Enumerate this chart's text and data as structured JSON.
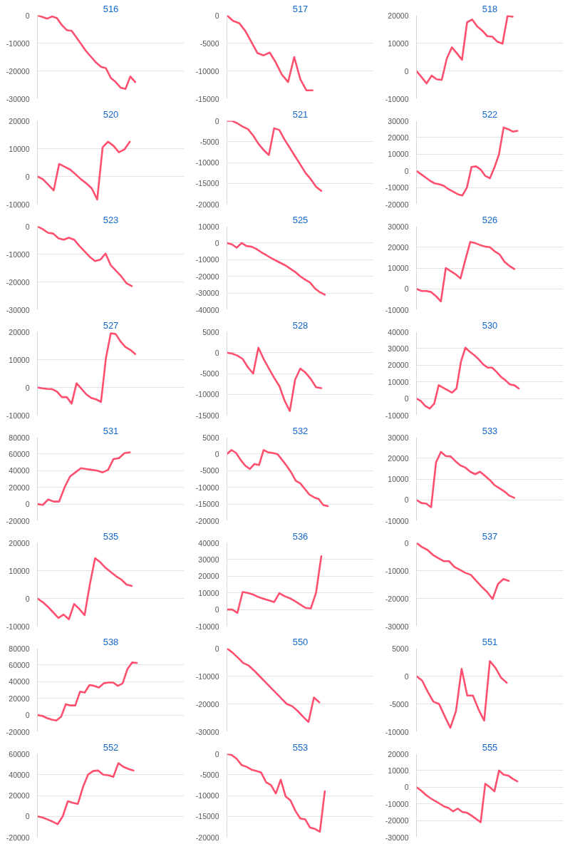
{
  "chart_data": [
    {
      "type": "line",
      "title": "516",
      "categories": [
        null,
        null,
        null,
        null,
        null,
        null,
        null,
        null,
        null,
        null,
        null,
        null,
        null,
        null,
        null,
        null,
        null,
        null,
        null,
        null,
        null,
        null,
        null,
        null,
        null,
        null,
        null,
        null,
        null,
        null,
        null
      ],
      "series": [
        {
          "color": "#ff4f6e",
          "values": [
            0,
            -600,
            -1200,
            -400,
            -1000,
            -3500,
            -5300,
            -5600,
            -8000,
            -10500,
            -13000,
            -15000,
            -17000,
            -18500,
            -19000,
            -22500,
            -24000,
            -26000,
            -26500,
            -22000,
            -24000,
            null,
            null,
            null,
            null,
            null,
            null,
            null,
            null,
            null,
            null
          ]
        }
      ],
      "ylim": [
        -30000,
        0
      ],
      "yticks": [
        -30000,
        -20000,
        -10000,
        0
      ],
      "grid": "y",
      "tick_labels": "y"
    },
    {
      "type": "line",
      "title": "517",
      "categories": [
        null,
        null,
        null,
        null,
        null,
        null,
        null,
        null,
        null,
        null,
        null,
        null,
        null,
        null,
        null,
        null,
        null,
        null,
        null,
        null,
        null,
        null,
        null,
        null,
        null
      ],
      "series": [
        {
          "color": "#ff4f6e",
          "values": [
            0,
            -1000,
            -1400,
            -2800,
            -4800,
            -6800,
            -7200,
            -6700,
            -8500,
            -10700,
            -12000,
            -7500,
            -11500,
            -13500,
            -13500,
            null,
            null,
            null,
            null,
            null,
            null,
            null,
            null,
            null,
            null
          ]
        }
      ],
      "ylim": [
        -15000,
        0
      ],
      "yticks": [
        -15000,
        -10000,
        -5000,
        0
      ],
      "grid": "y",
      "tick_labels": "y"
    },
    {
      "type": "line",
      "title": "518",
      "categories": [
        null,
        null,
        null,
        null,
        null,
        null,
        null,
        null,
        null,
        null,
        null,
        null,
        null,
        null,
        null,
        null,
        null,
        null,
        null,
        null,
        null,
        null,
        null,
        null,
        null,
        null,
        null,
        null,
        null,
        null
      ],
      "series": [
        {
          "color": "#ff4f6e",
          "values": [
            0,
            -2200,
            -4500,
            -1700,
            -3000,
            -3200,
            4500,
            8500,
            6300,
            4000,
            17500,
            18500,
            16000,
            14500,
            12500,
            12300,
            10500,
            9800,
            19800,
            19500,
            null,
            null,
            null,
            null,
            null,
            null,
            null,
            null,
            null,
            null
          ]
        }
      ],
      "ylim": [
        -10000,
        20000
      ],
      "yticks": [
        -10000,
        0,
        10000,
        20000
      ],
      "grid": "y",
      "tick_labels": "y"
    },
    {
      "type": "line",
      "title": "520",
      "categories": [
        null,
        null,
        null,
        null,
        null,
        null,
        null,
        null,
        null,
        null,
        null,
        null,
        null,
        null,
        null,
        null,
        null,
        null,
        null,
        null,
        null,
        null,
        null,
        null,
        null,
        null,
        null,
        null
      ],
      "series": [
        {
          "color": "#ff4f6e",
          "values": [
            0,
            -1000,
            -3000,
            -5000,
            4500,
            3500,
            2500,
            800,
            -1000,
            -2500,
            -4300,
            -8300,
            10500,
            12500,
            11000,
            8700,
            9700,
            12500,
            null,
            null,
            null,
            null,
            null,
            null,
            null,
            null,
            null,
            null
          ]
        }
      ],
      "ylim": [
        -10000,
        20000
      ],
      "yticks": [
        -10000,
        0,
        10000,
        20000
      ],
      "grid": "y",
      "tick_labels": "y"
    },
    {
      "type": "line",
      "title": "521",
      "categories": [
        null,
        null,
        null,
        null,
        null,
        null,
        null,
        null,
        null,
        null,
        null,
        null,
        null,
        null,
        null,
        null,
        null,
        null,
        null,
        null,
        null,
        null,
        null,
        null,
        null,
        null,
        null,
        null,
        null
      ],
      "series": [
        {
          "color": "#ff4f6e",
          "values": [
            0,
            0,
            -600,
            -1400,
            -2000,
            -3500,
            -5500,
            -7000,
            -8200,
            -1800,
            -2200,
            -4500,
            -6500,
            -8500,
            -10500,
            -12500,
            -14000,
            -15800,
            -16800,
            null,
            null,
            null,
            null,
            null,
            null,
            null,
            null,
            null,
            null
          ]
        }
      ],
      "ylim": [
        -20000,
        0
      ],
      "yticks": [
        -20000,
        -15000,
        -10000,
        -5000,
        0
      ],
      "grid": "y",
      "tick_labels": "y"
    },
    {
      "type": "line",
      "title": "522",
      "categories": [
        null,
        null,
        null,
        null,
        null,
        null,
        null,
        null,
        null,
        null,
        null,
        null,
        null,
        null,
        null,
        null,
        null,
        null,
        null,
        null,
        null,
        null,
        null,
        null,
        null,
        null,
        null,
        null,
        null,
        null,
        null,
        null,
        null
      ],
      "series": [
        {
          "color": "#ff4f6e",
          "values": [
            0,
            -2000,
            -4000,
            -6000,
            -7500,
            -8000,
            -9000,
            -11000,
            -12500,
            -14000,
            -14800,
            -10000,
            2300,
            2700,
            800,
            -3000,
            -4500,
            2000,
            10000,
            26000,
            25000,
            23500,
            24000,
            null,
            null,
            null,
            null,
            null,
            null,
            null,
            null,
            null,
            null
          ]
        }
      ],
      "ylim": [
        -20000,
        30000
      ],
      "yticks": [
        -20000,
        -10000,
        0,
        10000,
        20000,
        30000
      ],
      "grid": "y",
      "tick_labels": "y"
    },
    {
      "type": "line",
      "title": "523",
      "categories": [
        null,
        null,
        null,
        null,
        null,
        null,
        null,
        null,
        null,
        null,
        null,
        null,
        null,
        null,
        null,
        null,
        null,
        null,
        null,
        null,
        null,
        null,
        null,
        null,
        null,
        null,
        null,
        null,
        null
      ],
      "series": [
        {
          "color": "#ff4f6e",
          "values": [
            0,
            -1000,
            -2300,
            -2600,
            -4300,
            -4800,
            -4100,
            -4800,
            -7000,
            -9000,
            -11000,
            -12500,
            -12000,
            -9800,
            -14000,
            -16000,
            -18000,
            -20500,
            -21500,
            null,
            null,
            null,
            null,
            null,
            null,
            null,
            null,
            null,
            null
          ]
        }
      ],
      "ylim": [
        -30000,
        0
      ],
      "yticks": [
        -30000,
        -20000,
        -10000,
        0
      ],
      "grid": "y",
      "tick_labels": "y"
    },
    {
      "type": "line",
      "title": "525",
      "categories": [
        null,
        null,
        null,
        null,
        null,
        null,
        null,
        null,
        null,
        null,
        null,
        null,
        null,
        null,
        null,
        null,
        null,
        null,
        null,
        null,
        null,
        null,
        null,
        null,
        null,
        null,
        null,
        null,
        null,
        null,
        null
      ],
      "series": [
        {
          "color": "#ff4f6e",
          "values": [
            0,
            -800,
            -2800,
            0,
            -1800,
            -2200,
            -3500,
            -5500,
            -7200,
            -9000,
            -10500,
            -12000,
            -13500,
            -15500,
            -17500,
            -20000,
            -22000,
            -23700,
            -27300,
            -29500,
            -31000,
            null,
            null,
            null,
            null,
            null,
            null,
            null,
            null,
            null,
            null
          ]
        }
      ],
      "ylim": [
        -40000,
        10000
      ],
      "yticks": [
        -40000,
        -30000,
        -20000,
        -10000,
        0,
        10000
      ],
      "grid": "y",
      "tick_labels": "y"
    },
    {
      "type": "line",
      "title": "526",
      "categories": [
        null,
        null,
        null,
        null,
        null,
        null,
        null,
        null,
        null,
        null,
        null,
        null,
        null,
        null,
        null,
        null,
        null,
        null,
        null,
        null,
        null,
        null,
        null,
        null,
        null,
        null,
        null,
        null,
        null,
        null,
        null
      ],
      "series": [
        {
          "color": "#ff4f6e",
          "values": [
            0,
            -1000,
            -1000,
            -1500,
            -3500,
            -6000,
            10000,
            8500,
            7000,
            5000,
            14000,
            22500,
            22000,
            21000,
            20300,
            20000,
            18000,
            16500,
            13000,
            11000,
            9500,
            null,
            null,
            null,
            null,
            null,
            null,
            null,
            null,
            null,
            null
          ]
        }
      ],
      "ylim": [
        -10000,
        30000
      ],
      "yticks": [
        -10000,
        0,
        10000,
        20000,
        30000
      ],
      "grid": "y",
      "tick_labels": "y"
    },
    {
      "type": "line",
      "title": "527",
      "categories": [
        null,
        null,
        null,
        null,
        null,
        null,
        null,
        null,
        null,
        null,
        null,
        null,
        null,
        null,
        null,
        null,
        null,
        null,
        null,
        null,
        null,
        null,
        null,
        null,
        null,
        null,
        null,
        null,
        null,
        null,
        null
      ],
      "series": [
        {
          "color": "#ff4f6e",
          "values": [
            0,
            -300,
            -500,
            -600,
            -1500,
            -3500,
            -3500,
            -5800,
            1500,
            -500,
            -2500,
            -3800,
            -4300,
            -5200,
            10500,
            19500,
            19200,
            16500,
            14500,
            13500,
            12000,
            null,
            null,
            null,
            null,
            null,
            null,
            null,
            null,
            null,
            null
          ]
        }
      ],
      "ylim": [
        -10000,
        20000
      ],
      "yticks": [
        -10000,
        0,
        10000,
        20000
      ],
      "grid": "y",
      "tick_labels": "y"
    },
    {
      "type": "line",
      "title": "528",
      "categories": [
        null,
        null,
        null,
        null,
        null,
        null,
        null,
        null,
        null,
        null,
        null,
        null,
        null,
        null,
        null,
        null,
        null,
        null,
        null,
        null,
        null,
        null,
        null,
        null,
        null,
        null,
        null,
        null,
        null
      ],
      "series": [
        {
          "color": "#ff4f6e",
          "values": [
            0,
            -200,
            -700,
            -1500,
            -3500,
            -5000,
            1200,
            -1500,
            -3800,
            -6000,
            -8000,
            -11500,
            -14000,
            -6500,
            -3800,
            -4800,
            -6300,
            -8300,
            -8500,
            null,
            null,
            null,
            null,
            null,
            null,
            null,
            null,
            null,
            null
          ]
        }
      ],
      "ylim": [
        -15000,
        5000
      ],
      "yticks": [
        -15000,
        -10000,
        -5000,
        0,
        5000
      ],
      "grid": "y",
      "tick_labels": "y"
    },
    {
      "type": "line",
      "title": "530",
      "categories": [
        null,
        null,
        null,
        null,
        null,
        null,
        null,
        null,
        null,
        null,
        null,
        null,
        null,
        null,
        null,
        null,
        null,
        null,
        null,
        null,
        null,
        null,
        null,
        null,
        null,
        null,
        null,
        null,
        null,
        null,
        null,
        null,
        null,
        null
      ],
      "series": [
        {
          "color": "#ff4f6e",
          "values": [
            0,
            -1500,
            -4500,
            -6000,
            -3000,
            8000,
            6500,
            5000,
            3500,
            6000,
            22000,
            30500,
            28000,
            26000,
            23500,
            20500,
            18500,
            18500,
            16000,
            13000,
            11000,
            8500,
            8000,
            6000,
            null,
            null,
            null,
            null,
            null,
            null,
            null,
            null,
            null,
            null
          ]
        }
      ],
      "ylim": [
        -10000,
        40000
      ],
      "yticks": [
        -10000,
        0,
        10000,
        20000,
        30000,
        40000
      ],
      "grid": "y",
      "tick_labels": "y"
    },
    {
      "type": "line",
      "title": "531",
      "categories": [
        null,
        null,
        null,
        null,
        null,
        null,
        null,
        null,
        null,
        null,
        null,
        null,
        null,
        null,
        null,
        null,
        null,
        null,
        null,
        null,
        null,
        null,
        null,
        null,
        null,
        null,
        null,
        null
      ],
      "series": [
        {
          "color": "#ff4f6e",
          "values": [
            0,
            -1000,
            5500,
            3000,
            3000,
            20000,
            33000,
            38000,
            43000,
            42000,
            41000,
            40000,
            38000,
            41000,
            54000,
            55000,
            61000,
            62000,
            null,
            null,
            null,
            null,
            null,
            null,
            null,
            null,
            null,
            null
          ]
        }
      ],
      "ylim": [
        -20000,
        80000
      ],
      "yticks": [
        -20000,
        0,
        20000,
        40000,
        60000,
        80000
      ],
      "grid": "y",
      "tick_labels": "y"
    },
    {
      "type": "line",
      "title": "532",
      "categories": [
        null,
        null,
        null,
        null,
        null,
        null,
        null,
        null,
        null,
        null,
        null,
        null,
        null,
        null,
        null,
        null,
        null,
        null,
        null,
        null,
        null,
        null,
        null,
        null,
        null,
        null,
        null,
        null,
        null,
        null,
        null,
        null,
        null
      ],
      "series": [
        {
          "color": "#ff4f6e",
          "values": [
            0,
            1200,
            300,
            -1800,
            -3500,
            -4500,
            -3000,
            -3300,
            1200,
            500,
            300,
            0,
            -1700,
            -3500,
            -5500,
            -8000,
            -8800,
            -10500,
            -12200,
            -13000,
            -13500,
            -15300,
            -15600,
            null,
            null,
            null,
            null,
            null,
            null,
            null,
            null,
            null,
            null
          ]
        }
      ],
      "ylim": [
        -20000,
        5000
      ],
      "yticks": [
        -20000,
        -15000,
        -10000,
        -5000,
        0,
        5000
      ],
      "grid": "y",
      "tick_labels": "y"
    },
    {
      "type": "line",
      "title": "533",
      "categories": [
        null,
        null,
        null,
        null,
        null,
        null,
        null,
        null,
        null,
        null,
        null,
        null,
        null,
        null,
        null,
        null,
        null,
        null,
        null,
        null,
        null,
        null,
        null,
        null,
        null,
        null,
        null,
        null,
        null,
        null,
        null
      ],
      "series": [
        {
          "color": "#ff4f6e",
          "values": [
            0,
            -1500,
            -1800,
            -3500,
            18000,
            23000,
            21000,
            20800,
            18500,
            16500,
            15500,
            13500,
            12300,
            13500,
            11500,
            9500,
            7000,
            5500,
            4000,
            2000,
            1000,
            null,
            null,
            null,
            null,
            null,
            null,
            null,
            null,
            null,
            null
          ]
        }
      ],
      "ylim": [
        -10000,
        30000
      ],
      "yticks": [
        -10000,
        0,
        10000,
        20000,
        30000
      ],
      "grid": "y",
      "tick_labels": "y"
    },
    {
      "type": "line",
      "title": "535",
      "categories": [
        null,
        null,
        null,
        null,
        null,
        null,
        null,
        null,
        null,
        null,
        null,
        null,
        null,
        null,
        null,
        null,
        null,
        null,
        null,
        null,
        null,
        null,
        null,
        null,
        null,
        null,
        null,
        null,
        null
      ],
      "series": [
        {
          "color": "#ff4f6e",
          "values": [
            0,
            -1300,
            -3000,
            -5000,
            -7000,
            -5800,
            -7500,
            -2000,
            -3800,
            -6000,
            5000,
            14500,
            13000,
            11000,
            9500,
            8000,
            6800,
            5000,
            4500,
            null,
            null,
            null,
            null,
            null,
            null,
            null,
            null,
            null,
            null
          ]
        }
      ],
      "ylim": [
        -10000,
        20000
      ],
      "yticks": [
        -10000,
        0,
        10000,
        20000
      ],
      "grid": "y",
      "tick_labels": "y"
    },
    {
      "type": "line",
      "title": "536",
      "categories": [
        null,
        null,
        null,
        null,
        null,
        null,
        null,
        null,
        null,
        null,
        null,
        null,
        null,
        null,
        null,
        null,
        null,
        null,
        null,
        null,
        null,
        null,
        null,
        null,
        null,
        null,
        null,
        null,
        null
      ],
      "series": [
        {
          "color": "#ff4f6e",
          "values": [
            0,
            0,
            -2000,
            10500,
            10000,
            9000,
            7500,
            6500,
            5500,
            4500,
            9800,
            8000,
            6800,
            5000,
            3000,
            1000,
            700,
            10000,
            32000,
            null,
            null,
            null,
            null,
            null,
            null,
            null,
            null,
            null,
            null
          ]
        }
      ],
      "ylim": [
        -10000,
        40000
      ],
      "yticks": [
        -10000,
        0,
        10000,
        20000,
        30000,
        40000
      ],
      "grid": "y",
      "tick_labels": "y"
    },
    {
      "type": "line",
      "title": "537",
      "categories": [
        null,
        null,
        null,
        null,
        null,
        null,
        null,
        null,
        null,
        null,
        null,
        null,
        null,
        null,
        null,
        null,
        null,
        null,
        null,
        null,
        null,
        null,
        null,
        null,
        null,
        null,
        null,
        null
      ],
      "series": [
        {
          "color": "#ff4f6e",
          "values": [
            0,
            -1500,
            -2500,
            -4300,
            -5500,
            -6600,
            -6600,
            -8700,
            -9700,
            -10800,
            -11500,
            -13700,
            -15800,
            -17700,
            -20200,
            -14800,
            -13000,
            -13700,
            null,
            null,
            null,
            null,
            null,
            null,
            null,
            null,
            null,
            null
          ]
        }
      ],
      "ylim": [
        -30000,
        0
      ],
      "yticks": [
        -30000,
        -20000,
        -10000,
        0
      ],
      "grid": "y",
      "tick_labels": "y"
    },
    {
      "type": "line",
      "title": "538",
      "categories": [
        null,
        null,
        null,
        null,
        null,
        null,
        null,
        null,
        null,
        null,
        null,
        null,
        null,
        null,
        null,
        null,
        null,
        null,
        null,
        null,
        null,
        null,
        null,
        null,
        null,
        null,
        null,
        null,
        null,
        null,
        null,
        null
      ],
      "series": [
        {
          "color": "#ff4f6e",
          "values": [
            0,
            -1000,
            -3500,
            -5500,
            -6500,
            -2000,
            13000,
            11500,
            11500,
            28000,
            27000,
            36000,
            35000,
            33000,
            38000,
            39000,
            39000,
            35000,
            38000,
            55000,
            63000,
            62500,
            null,
            null,
            null,
            null,
            null,
            null,
            null,
            null,
            null,
            null
          ]
        }
      ],
      "ylim": [
        -20000,
        80000
      ],
      "yticks": [
        -20000,
        0,
        20000,
        40000,
        60000,
        80000
      ],
      "grid": "y",
      "tick_labels": "y"
    },
    {
      "type": "line",
      "title": "550",
      "categories": [
        null,
        null,
        null,
        null,
        null,
        null,
        null,
        null,
        null,
        null,
        null,
        null,
        null,
        null,
        null,
        null,
        null,
        null,
        null,
        null,
        null,
        null,
        null,
        null,
        null,
        null,
        null,
        null
      ],
      "series": [
        {
          "color": "#ff4f6e",
          "values": [
            0,
            -1500,
            -3300,
            -5300,
            -6200,
            -8000,
            -10000,
            -12000,
            -14000,
            -16000,
            -18000,
            -20000,
            -20800,
            -22500,
            -24600,
            -26500,
            -17700,
            -19400,
            null,
            null,
            null,
            null,
            null,
            null,
            null,
            null,
            null,
            null
          ]
        }
      ],
      "ylim": [
        -30000,
        0
      ],
      "yticks": [
        -30000,
        -20000,
        -10000,
        0
      ],
      "grid": "y",
      "tick_labels": "y"
    },
    {
      "type": "line",
      "title": "551",
      "categories": [
        null,
        null,
        null,
        null,
        null,
        null,
        null,
        null,
        null,
        null,
        null,
        null,
        null,
        null,
        null,
        null,
        null,
        null,
        null,
        null,
        null,
        null,
        null,
        null,
        null,
        null,
        null
      ],
      "series": [
        {
          "color": "#ff4f6e",
          "values": [
            0,
            -800,
            -2800,
            -4600,
            -5000,
            -7200,
            -9300,
            -6300,
            1300,
            -3500,
            -3500,
            -6000,
            -8000,
            2700,
            1500,
            -300,
            -1200,
            null,
            null,
            null,
            null,
            null,
            null,
            null,
            null,
            null,
            null
          ]
        }
      ],
      "ylim": [
        -10000,
        5000
      ],
      "yticks": [
        -10000,
        -5000,
        0,
        5000
      ],
      "grid": "y",
      "tick_labels": "y"
    },
    {
      "type": "line",
      "title": "552",
      "categories": [
        null,
        null,
        null,
        null,
        null,
        null,
        null,
        null,
        null,
        null,
        null,
        null,
        null,
        null,
        null,
        null,
        null,
        null,
        null,
        null,
        null,
        null,
        null,
        null,
        null,
        null,
        null,
        null,
        null,
        null
      ],
      "series": [
        {
          "color": "#ff4f6e",
          "values": [
            0,
            -1000,
            -3000,
            -5000,
            -7500,
            0,
            14500,
            13000,
            12000,
            28000,
            40000,
            43500,
            44000,
            40000,
            39500,
            38000,
            51000,
            47500,
            45500,
            44000,
            null,
            null,
            null,
            null,
            null,
            null,
            null,
            null,
            null,
            null
          ]
        }
      ],
      "ylim": [
        -20000,
        60000
      ],
      "yticks": [
        -20000,
        0,
        20000,
        40000,
        60000
      ],
      "grid": "y",
      "tick_labels": "y"
    },
    {
      "type": "line",
      "title": "553",
      "categories": [
        null,
        null,
        null,
        null,
        null,
        null,
        null,
        null,
        null,
        null,
        null,
        null,
        null,
        null,
        null,
        null,
        null,
        null,
        null,
        null,
        null,
        null,
        null,
        null,
        null,
        null,
        null,
        null,
        null,
        null,
        null
      ],
      "series": [
        {
          "color": "#ff4f6e",
          "values": [
            0,
            -300,
            -1200,
            -2700,
            -3100,
            -3800,
            -4100,
            -4500,
            -6800,
            -7500,
            -9500,
            -6200,
            -10200,
            -11200,
            -13700,
            -15500,
            -15700,
            -17700,
            -18000,
            -18700,
            -9000,
            null,
            null,
            null,
            null,
            null,
            null,
            null,
            null,
            null,
            null
          ]
        }
      ],
      "ylim": [
        -20000,
        0
      ],
      "yticks": [
        -20000,
        -15000,
        -10000,
        -5000,
        0
      ],
      "grid": "y",
      "tick_labels": "y"
    },
    {
      "type": "line",
      "title": "555",
      "categories": [
        null,
        null,
        null,
        null,
        null,
        null,
        null,
        null,
        null,
        null,
        null,
        null,
        null,
        null,
        null,
        null,
        null,
        null,
        null,
        null,
        null,
        null,
        null,
        null,
        null,
        null,
        null,
        null,
        null,
        null,
        null,
        null,
        null
      ],
      "series": [
        {
          "color": "#ff4f6e",
          "values": [
            0,
            -2000,
            -4500,
            -6500,
            -8200,
            -9800,
            -11500,
            -12500,
            -14500,
            -12800,
            -14800,
            -15300,
            -17000,
            -19000,
            -21000,
            2000,
            0,
            -2500,
            10000,
            7500,
            7000,
            5000,
            3500,
            null,
            null,
            null,
            null,
            null,
            null,
            null,
            null,
            null,
            null
          ]
        }
      ],
      "ylim": [
        -30000,
        20000
      ],
      "yticks": [
        -30000,
        -20000,
        -10000,
        0,
        10000,
        20000
      ],
      "grid": "y",
      "tick_labels": "y"
    }
  ]
}
